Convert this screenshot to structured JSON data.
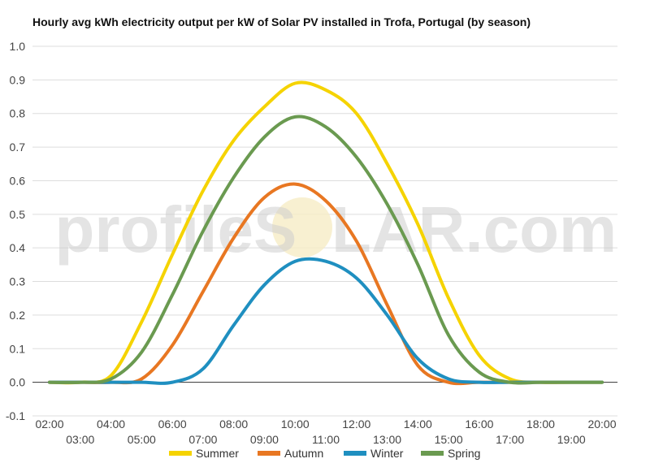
{
  "chart_data": {
    "type": "line",
    "title": "Hourly avg kWh electricity output per kW of Solar PV installed in Trofa, Portugal (by season)",
    "xlabel": "",
    "ylabel": "",
    "ylim": [
      -0.1,
      1.0
    ],
    "yticks": [
      "1.0",
      "0.9",
      "0.8",
      "0.7",
      "0.6",
      "0.5",
      "0.4",
      "0.3",
      "0.2",
      "0.1",
      "0.0",
      "-0.1"
    ],
    "categories": [
      "02:00",
      "03:00",
      "04:00",
      "05:00",
      "06:00",
      "07:00",
      "08:00",
      "09:00",
      "10:00",
      "11:00",
      "12:00",
      "13:00",
      "14:00",
      "15:00",
      "16:00",
      "17:00",
      "18:00",
      "19:00",
      "20:00"
    ],
    "grid": true,
    "legend_position": "bottom",
    "watermark": {
      "left": "profile",
      "middle": "S",
      "right": "LAR.com"
    },
    "series": [
      {
        "name": "Summer",
        "color": "#f5d300",
        "values": [
          0,
          0,
          0.02,
          0.18,
          0.38,
          0.57,
          0.72,
          0.82,
          0.89,
          0.87,
          0.8,
          0.65,
          0.47,
          0.25,
          0.08,
          0.01,
          0,
          0,
          0
        ]
      },
      {
        "name": "Autumn",
        "color": "#e87722",
        "values": [
          0,
          0,
          0,
          0.01,
          0.11,
          0.27,
          0.43,
          0.55,
          0.59,
          0.54,
          0.42,
          0.23,
          0.05,
          0,
          0,
          0,
          0,
          0,
          0
        ]
      },
      {
        "name": "Winter",
        "color": "#1f8fc0",
        "values": [
          0,
          0,
          0,
          0,
          0,
          0.04,
          0.17,
          0.29,
          0.36,
          0.36,
          0.31,
          0.2,
          0.07,
          0.01,
          0,
          0,
          0,
          0,
          0
        ]
      },
      {
        "name": "Spring",
        "color": "#6a9a50",
        "values": [
          0,
          0,
          0.01,
          0.09,
          0.26,
          0.45,
          0.61,
          0.73,
          0.79,
          0.76,
          0.67,
          0.53,
          0.35,
          0.14,
          0.03,
          0,
          0,
          0,
          0
        ]
      }
    ]
  }
}
